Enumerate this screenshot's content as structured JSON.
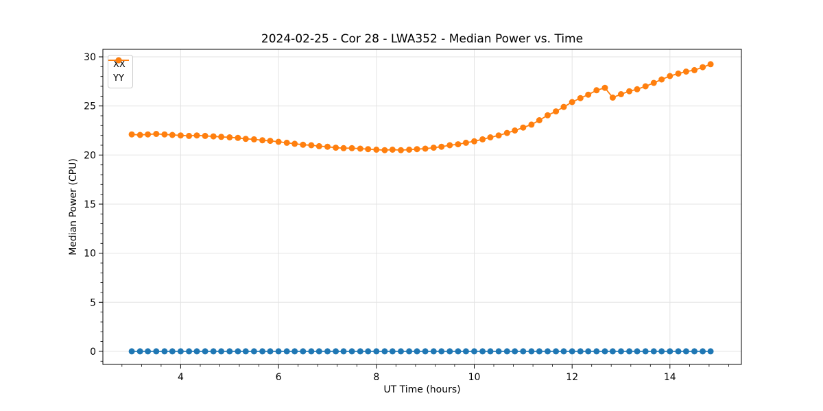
{
  "chart_data": {
    "type": "line",
    "title": "2024-02-25 - Cor 28 - LWA352 - Median Power vs. Time",
    "xlabel": "UT Time (hours)",
    "ylabel": "Median Power (CPU)",
    "x": [
      3.0,
      3.17,
      3.33,
      3.5,
      3.67,
      3.83,
      4.0,
      4.17,
      4.33,
      4.5,
      4.67,
      4.83,
      5.0,
      5.17,
      5.33,
      5.5,
      5.67,
      5.83,
      6.0,
      6.17,
      6.33,
      6.5,
      6.67,
      6.83,
      7.0,
      7.17,
      7.33,
      7.5,
      7.67,
      7.83,
      8.0,
      8.17,
      8.33,
      8.5,
      8.67,
      8.83,
      9.0,
      9.17,
      9.33,
      9.5,
      9.67,
      9.83,
      10.0,
      10.17,
      10.33,
      10.5,
      10.67,
      10.83,
      11.0,
      11.17,
      11.33,
      11.5,
      11.67,
      11.83,
      12.0,
      12.17,
      12.33,
      12.5,
      12.67,
      12.83,
      13.0,
      13.17,
      13.33,
      13.5,
      13.67,
      13.83,
      14.0,
      14.17,
      14.33,
      14.5,
      14.67,
      14.83
    ],
    "series": [
      {
        "name": "XX",
        "color": "#1f77b4",
        "values": [
          0,
          0,
          0,
          0,
          0,
          0,
          0,
          0,
          0,
          0,
          0,
          0,
          0,
          0,
          0,
          0,
          0,
          0,
          0,
          0,
          0,
          0,
          0,
          0,
          0,
          0,
          0,
          0,
          0,
          0,
          0,
          0,
          0,
          0,
          0,
          0,
          0,
          0,
          0,
          0,
          0,
          0,
          0,
          0,
          0,
          0,
          0,
          0,
          0,
          0,
          0,
          0,
          0,
          0,
          0,
          0,
          0,
          0,
          0,
          0,
          0,
          0,
          0,
          0,
          0,
          0,
          0,
          0,
          0,
          0,
          0,
          0
        ]
      },
      {
        "name": "YY",
        "color": "#ff7f0e",
        "values": [
          22.1,
          22.05,
          22.1,
          22.15,
          22.1,
          22.05,
          22.0,
          21.95,
          22.0,
          21.95,
          21.9,
          21.85,
          21.8,
          21.75,
          21.65,
          21.6,
          21.5,
          21.45,
          21.35,
          21.25,
          21.15,
          21.05,
          21.0,
          20.9,
          20.85,
          20.75,
          20.7,
          20.7,
          20.65,
          20.6,
          20.55,
          20.5,
          20.55,
          20.5,
          20.55,
          20.6,
          20.65,
          20.75,
          20.85,
          21.0,
          21.1,
          21.25,
          21.4,
          21.6,
          21.8,
          22.0,
          22.25,
          22.5,
          22.8,
          23.1,
          23.55,
          24.05,
          24.45,
          24.9,
          25.4,
          25.8,
          26.15,
          26.6,
          26.85,
          25.85,
          26.2,
          26.5,
          26.7,
          27.0,
          27.35,
          27.7,
          28.05,
          28.3,
          28.5,
          28.65,
          28.95,
          29.25
        ]
      }
    ],
    "xlim": [
      2.41,
      15.46
    ],
    "ylim": [
      -1.33,
      30.77
    ],
    "x_major_ticks": [
      4,
      6,
      8,
      10,
      12,
      14
    ],
    "y_major_ticks": [
      0,
      5,
      10,
      15,
      20,
      25,
      30
    ],
    "x_minor_step": 0.4,
    "y_minor_step": 1,
    "grid": "major",
    "legend_position": "upper-left",
    "marker": "circle",
    "grid_color": "#e3e3e3",
    "axis_color": "#000000",
    "text_color": "#000000"
  }
}
